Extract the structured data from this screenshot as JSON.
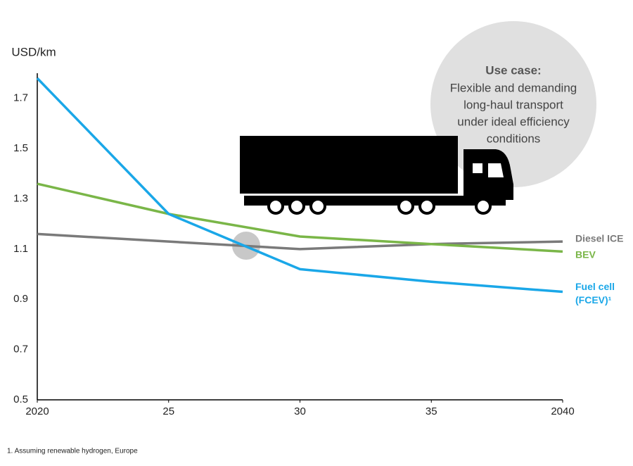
{
  "chart_data": {
    "type": "line",
    "y_label": "USD/km",
    "x": [
      2020,
      2025,
      2030,
      2035,
      2040
    ],
    "series": [
      {
        "name": "Diesel ICE",
        "color": "#7a7a7a",
        "values": [
          1.16,
          1.13,
          1.1,
          1.12,
          1.13
        ]
      },
      {
        "name": "BEV",
        "color": "#7ab648",
        "values": [
          1.36,
          1.24,
          1.15,
          1.12,
          1.09
        ]
      },
      {
        "name": "Fuel cell (FCEV)¹",
        "color": "#1aa7e8",
        "values": [
          1.78,
          1.24,
          1.02,
          0.97,
          0.93
        ]
      }
    ],
    "xlim": [
      2020,
      2040
    ],
    "xticks": [
      {
        "value": 2020,
        "label": "2020"
      },
      {
        "value": 2025,
        "label": "25"
      },
      {
        "value": 2030,
        "label": "30"
      },
      {
        "value": 2035,
        "label": "35"
      },
      {
        "value": 2040,
        "label": "2040"
      }
    ],
    "ylim": [
      0.5,
      1.8
    ],
    "yticks": [
      0.5,
      0.7,
      0.9,
      1.1,
      1.3,
      1.5,
      1.7
    ],
    "grid": false,
    "annotation": {
      "title": "Use case:",
      "lines": [
        "Flexible and demanding",
        "long-haul transport",
        "under ideal efficiency",
        "conditions"
      ]
    },
    "footnote": "1.   Assuming renewable hydrogen, Europe"
  }
}
